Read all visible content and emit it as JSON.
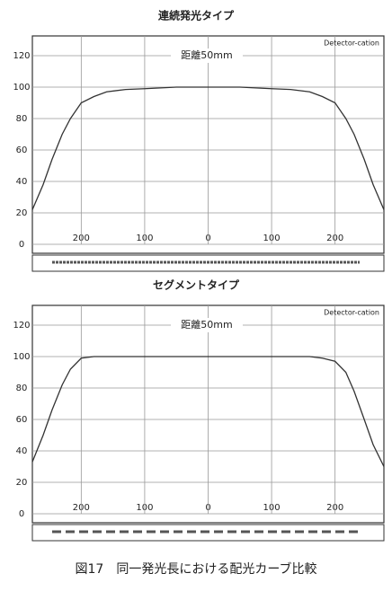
{
  "chart_data": [
    {
      "type": "line",
      "title": "連続発光タイプ",
      "annotation": "距離50mm",
      "label": "Detector-cation",
      "x": [
        -277,
        -260,
        -246,
        -230,
        -217,
        -200,
        -180,
        -160,
        -130,
        -100,
        -50,
        0,
        50,
        100,
        130,
        160,
        180,
        200,
        217,
        230,
        246,
        260,
        277
      ],
      "series": [
        {
          "color": "#333333",
          "values": [
            22,
            38,
            54,
            70,
            80,
            90,
            94,
            97,
            98.5,
            99,
            100,
            100,
            100,
            99,
            98.5,
            97,
            94,
            90,
            80,
            70,
            54,
            38,
            22
          ]
        }
      ],
      "xlim": [
        -277,
        277
      ],
      "xticks": [
        {
          "value": -200,
          "label": "200"
        },
        {
          "value": -100,
          "label": "100"
        },
        0,
        100,
        200
      ],
      "ylim": [
        0,
        120
      ],
      "yticks": [
        0,
        20,
        40,
        60,
        80,
        100,
        120
      ],
      "grid": true
    },
    {
      "type": "line",
      "title": "セグメントタイプ",
      "annotation": "距離50mm",
      "label": "Detector-cation",
      "x": [
        -277,
        -260,
        -246,
        -230,
        -217,
        -200,
        -180,
        -160,
        -130,
        -100,
        -50,
        0,
        50,
        100,
        130,
        160,
        180,
        200,
        217,
        230,
        246,
        260,
        277
      ],
      "series": [
        {
          "color": "#333333",
          "values": [
            33,
            50,
            66,
            82,
            92,
            99,
            100,
            100,
            100,
            100,
            100,
            100,
            100,
            100,
            100,
            100,
            99,
            97,
            90,
            78,
            60,
            44,
            30
          ]
        }
      ],
      "xlim": [
        -277,
        277
      ],
      "xticks": [
        {
          "value": -200,
          "label": "200"
        },
        {
          "value": -100,
          "label": "100"
        },
        0,
        100,
        200
      ],
      "ylim": [
        0,
        120
      ],
      "yticks": [
        0,
        20,
        40,
        60,
        80,
        100,
        120
      ],
      "grid": true
    }
  ],
  "caption": "図17　同一発光長における配光カーブ比較"
}
